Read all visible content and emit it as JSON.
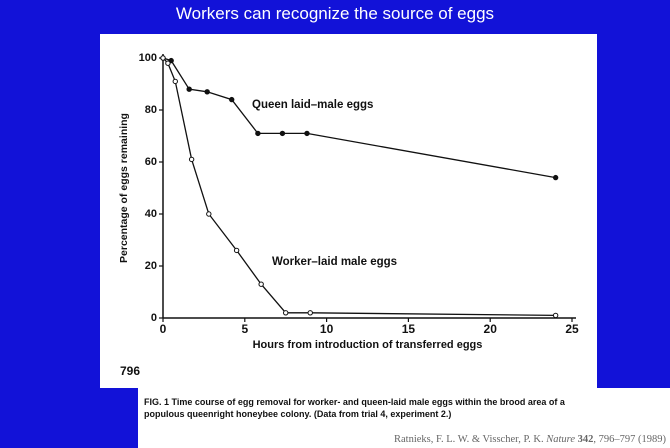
{
  "title": "Workers can recognize the source of eggs",
  "chart_data": {
    "type": "line",
    "xlabel": "Hours from introduction of transferred eggs",
    "ylabel": "Percentage of eggs remaining",
    "xlim": [
      0,
      25
    ],
    "xticks": [
      0,
      5,
      10,
      15,
      20,
      25
    ],
    "ylim": [
      0,
      100
    ],
    "yticks": [
      0,
      20,
      40,
      60,
      80,
      100
    ],
    "series": [
      {
        "name": "Queen laid–male eggs",
        "color": "#111111",
        "marker_fill": "#111111",
        "x": [
          0,
          0.5,
          1.6,
          2.7,
          4.2,
          5.8,
          7.3,
          8.8,
          24
        ],
        "values": [
          100,
          99,
          88,
          87,
          84,
          71,
          71,
          71,
          54
        ]
      },
      {
        "name": "Worker–laid male eggs",
        "color": "#111111",
        "marker_fill": "#ffffff",
        "x": [
          0,
          0.3,
          0.75,
          1.75,
          2.8,
          4.5,
          6,
          7.5,
          9,
          24
        ],
        "values": [
          100,
          98,
          91,
          61,
          40,
          26,
          13,
          2,
          2,
          1
        ]
      }
    ]
  },
  "page_number": "796",
  "caption": "FIG. 1 Time course of egg removal for worker- and queen-laid male eggs within the brood area of a populous queenright honeybee colony. (Data from trial 4, experiment 2.)",
  "citation": [
    "Ratnieks, F. L. W. & Visscher, P. K. ",
    "Nature",
    " 342",
    ", 796–797 (1989)"
  ]
}
